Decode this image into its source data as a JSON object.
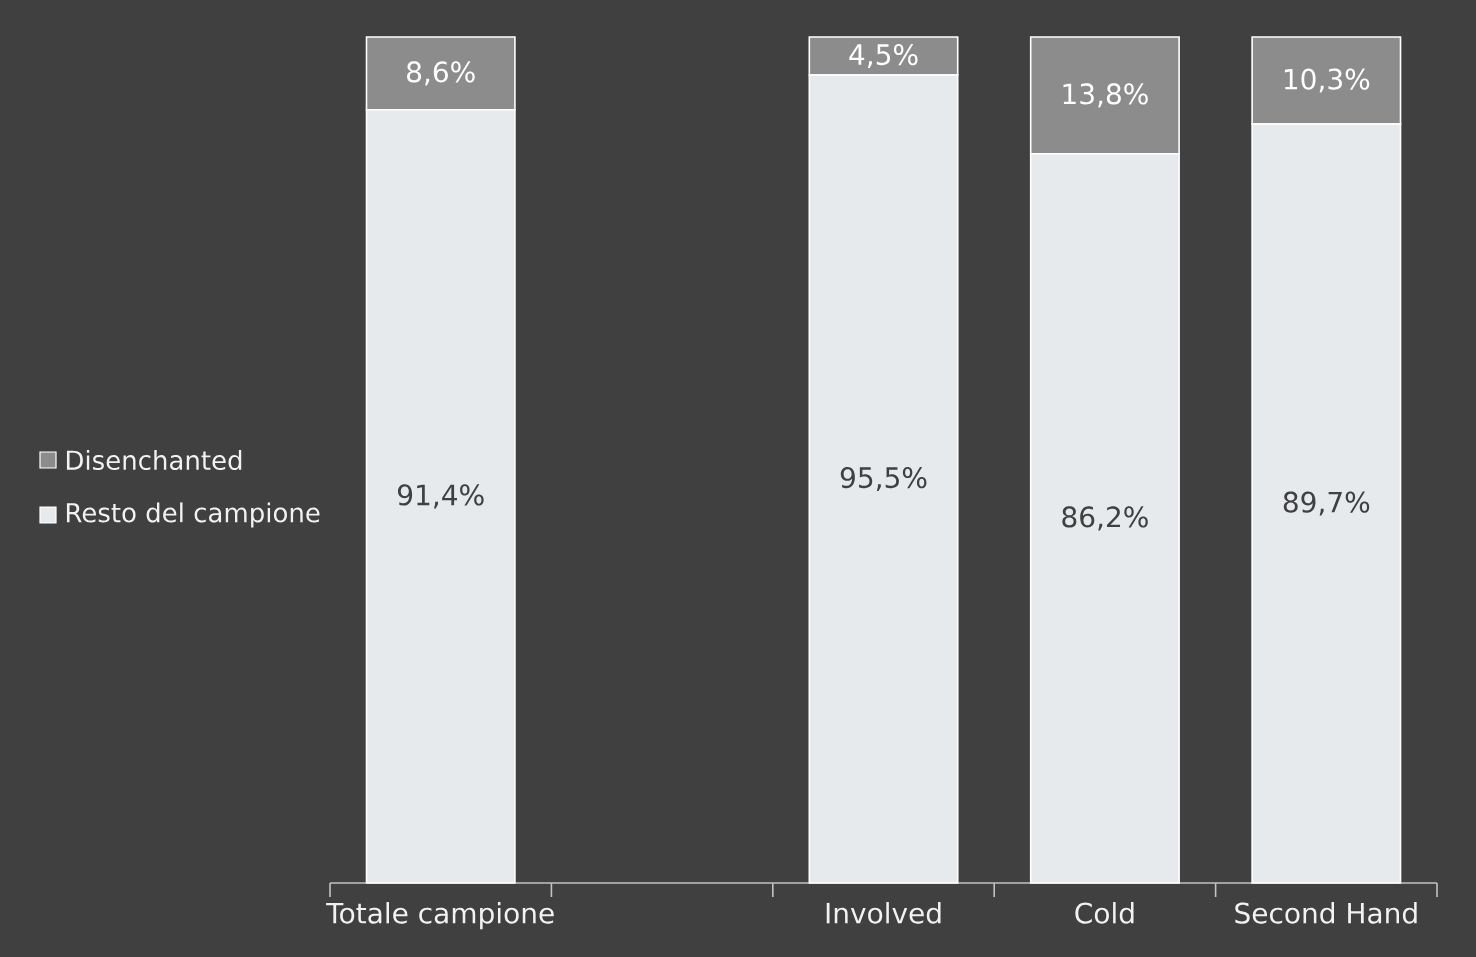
{
  "chart_data": {
    "type": "bar",
    "stacked": true,
    "categories": [
      "Totale campione",
      null,
      "Involved",
      "Cold",
      "Second Hand"
    ],
    "tick_labels": "x",
    "legend": "left",
    "series": [
      {
        "name": "Resto del campione",
        "color": "#e6eaed",
        "values": [
          91.4,
          null,
          95.5,
          86.2,
          89.7
        ],
        "value_labels": [
          "91,4%",
          null,
          "95,5%",
          "86,2%",
          "89,7%"
        ]
      },
      {
        "name": "Disenchanted",
        "color": "#8c8c8c",
        "values": [
          8.6,
          null,
          4.5,
          13.8,
          10.3
        ],
        "value_labels": [
          "8,6%",
          null,
          "4,5%",
          "13,8%",
          "10,3%"
        ]
      }
    ]
  }
}
